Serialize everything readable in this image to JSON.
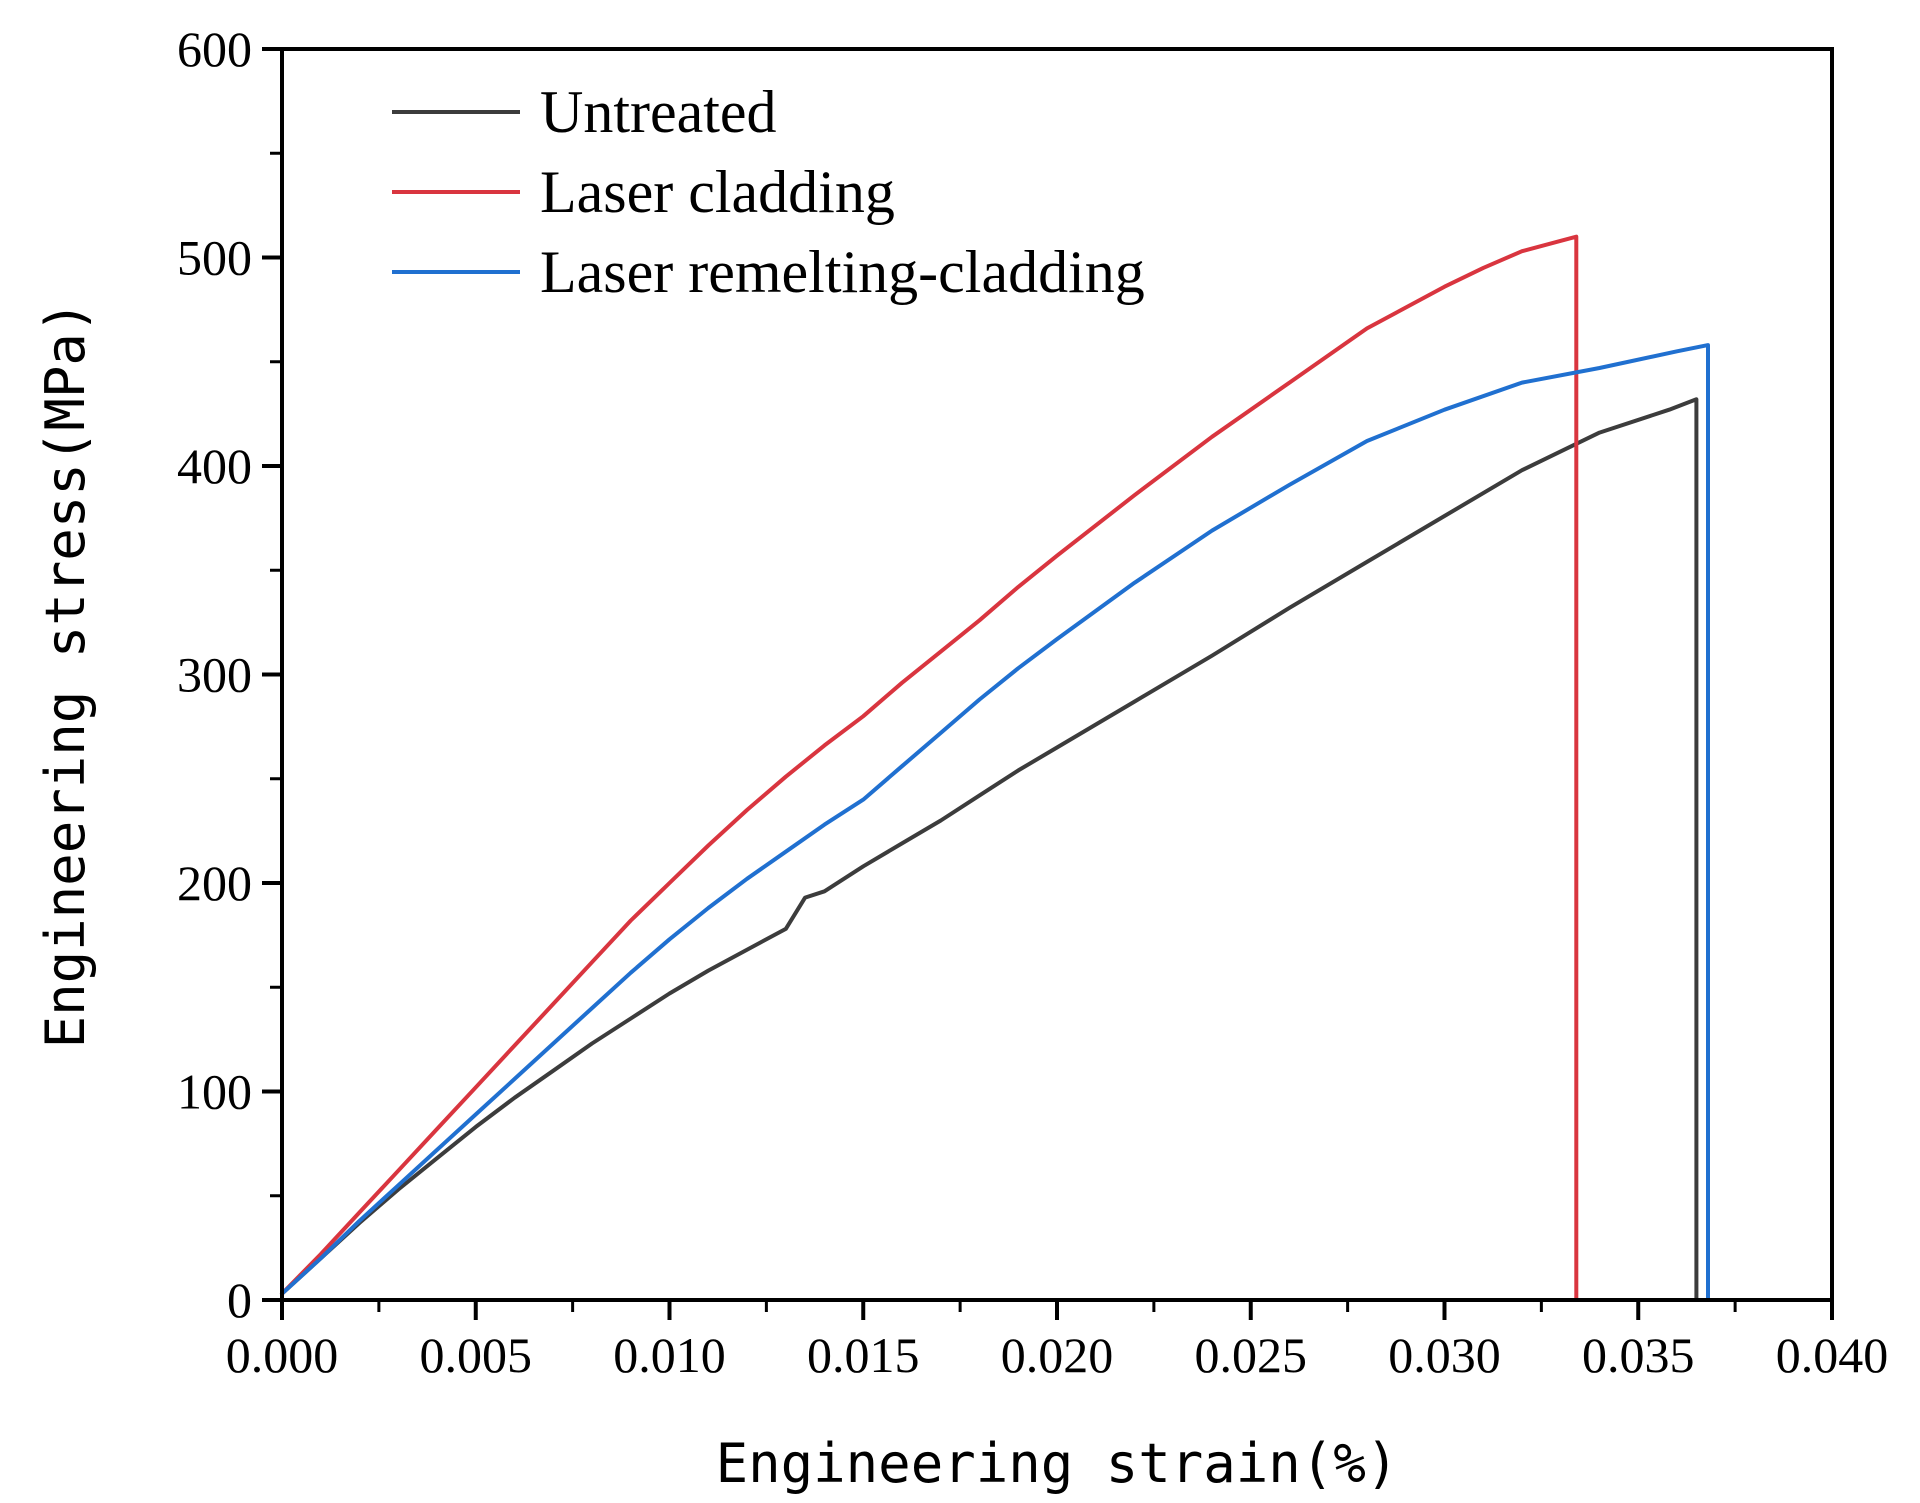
{
  "chart_data": {
    "type": "line",
    "title": "",
    "xlabel": "Engineering strain(%)",
    "ylabel": "Engineering stress(MPa)",
    "xlim": [
      0,
      0.04
    ],
    "ylim": [
      0,
      600
    ],
    "x_ticks": [
      0,
      0.005,
      0.01,
      0.015,
      0.02,
      0.025,
      0.03,
      0.035,
      0.04
    ],
    "x_tick_labels": [
      "0.000",
      "0.005",
      "0.010",
      "0.015",
      "0.020",
      "0.025",
      "0.030",
      "0.035",
      "0.040"
    ],
    "y_ticks": [
      0,
      100,
      200,
      300,
      400,
      500,
      600
    ],
    "y_tick_labels": [
      "0",
      "100",
      "200",
      "300",
      "400",
      "500",
      "600"
    ],
    "grid": false,
    "legend_position": "top-left",
    "series": [
      {
        "name": "Untreated",
        "color": "#3c3c3c",
        "x": [
          0,
          0.001,
          0.002,
          0.003,
          0.004,
          0.005,
          0.006,
          0.007,
          0.008,
          0.009,
          0.01,
          0.011,
          0.012,
          0.013,
          0.0135,
          0.014,
          0.015,
          0.016,
          0.017,
          0.018,
          0.019,
          0.02,
          0.022,
          0.024,
          0.026,
          0.028,
          0.03,
          0.032,
          0.034,
          0.0358,
          0.0365,
          0.0365
        ],
        "y": [
          3,
          20,
          37,
          53,
          68,
          83,
          97,
          110,
          123,
          135,
          147,
          158,
          168,
          178,
          193,
          196,
          208,
          219,
          230,
          242,
          254,
          265,
          287,
          309,
          332,
          354,
          376,
          398,
          416,
          427,
          432,
          0
        ]
      },
      {
        "name": "Laser cladding",
        "color": "#d9353f",
        "x": [
          0,
          0.001,
          0.002,
          0.003,
          0.004,
          0.005,
          0.006,
          0.007,
          0.008,
          0.009,
          0.01,
          0.011,
          0.012,
          0.013,
          0.014,
          0.015,
          0.016,
          0.017,
          0.018,
          0.019,
          0.02,
          0.022,
          0.024,
          0.026,
          0.028,
          0.03,
          0.031,
          0.032,
          0.033,
          0.0334,
          0.0334
        ],
        "y": [
          3,
          22,
          42,
          62,
          82,
          102,
          122,
          142,
          162,
          182,
          200,
          218,
          235,
          251,
          266,
          280,
          296,
          311,
          326,
          342,
          357,
          386,
          414,
          440,
          466,
          486,
          495,
          503,
          508,
          510,
          0
        ]
      },
      {
        "name": "Laser remelting-cladding",
        "color": "#2070d0",
        "x": [
          0,
          0.001,
          0.002,
          0.003,
          0.004,
          0.005,
          0.006,
          0.007,
          0.008,
          0.009,
          0.01,
          0.011,
          0.012,
          0.013,
          0.014,
          0.015,
          0.016,
          0.017,
          0.018,
          0.019,
          0.02,
          0.022,
          0.024,
          0.026,
          0.028,
          0.03,
          0.032,
          0.034,
          0.036,
          0.0368,
          0.0368
        ],
        "y": [
          3,
          20,
          38,
          55,
          72,
          89,
          106,
          123,
          140,
          157,
          173,
          188,
          202,
          215,
          228,
          240,
          256,
          272,
          288,
          303,
          317,
          344,
          369,
          391,
          412,
          427,
          440,
          447,
          455,
          458,
          0
        ]
      }
    ]
  }
}
